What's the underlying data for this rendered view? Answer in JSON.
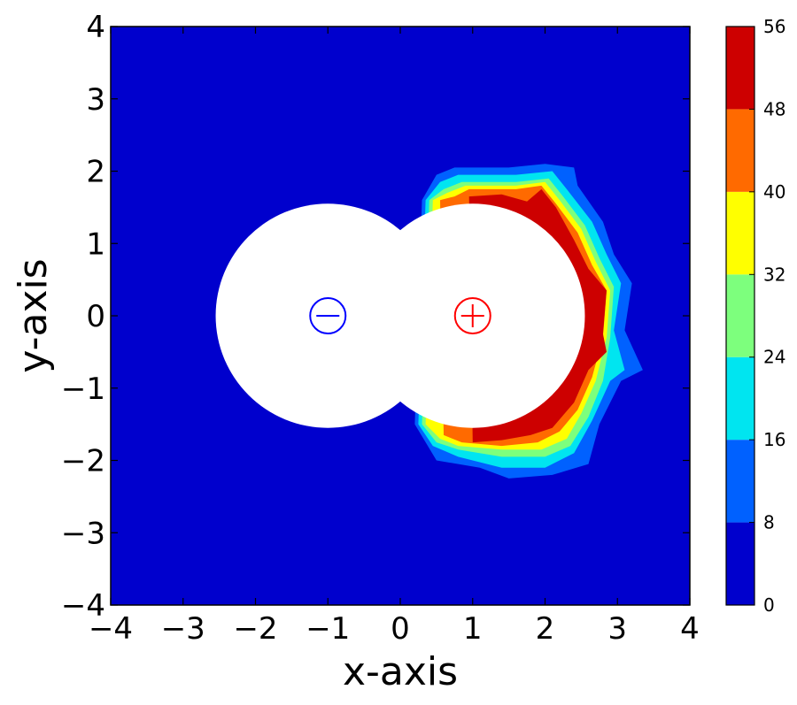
{
  "chart_data": {
    "type": "contour",
    "xlabel": "x-axis",
    "ylabel": "y-axis",
    "xlim": [
      -4,
      4
    ],
    "ylim": [
      -4,
      4
    ],
    "xticks": [
      "−4",
      "−3",
      "−2",
      "−1",
      "0",
      "1",
      "2",
      "3",
      "4"
    ],
    "yticks": [
      "−4",
      "−3",
      "−2",
      "−1",
      "0",
      "1",
      "2",
      "3",
      "4"
    ],
    "xtick_values": [
      -4,
      -3,
      -2,
      -1,
      0,
      1,
      2,
      3,
      4
    ],
    "ytick_values": [
      -4,
      -3,
      -2,
      -1,
      0,
      1,
      2,
      3,
      4
    ],
    "grid": false,
    "colorbar": {
      "levels": [
        0,
        8,
        16,
        24,
        32,
        40,
        48,
        56
      ],
      "labels": [
        "0",
        "8",
        "16",
        "24",
        "32",
        "40",
        "48",
        "56"
      ],
      "colors": [
        "#0000cd",
        "#0061ff",
        "#00e5f0",
        "#7dff7d",
        "#ffff00",
        "#ff6a00",
        "#cd0000"
      ]
    },
    "excluded_discs": [
      {
        "center": [
          -1,
          0
        ],
        "radius": 1.55
      },
      {
        "center": [
          1,
          0
        ],
        "radius": 1.55
      }
    ],
    "charges": [
      {
        "sign": "negative",
        "x": -1,
        "y": 0,
        "color": "#0000ff"
      },
      {
        "sign": "positive",
        "x": 1,
        "y": 0,
        "color": "#ff0000"
      }
    ],
    "contour_bands": [
      {
        "level_range": [
          8,
          16
        ],
        "color": "#0061ff",
        "points": [
          [
            0.3,
            1.6
          ],
          [
            0.5,
            1.95
          ],
          [
            0.75,
            2.05
          ],
          [
            1.5,
            2.05
          ],
          [
            2.0,
            2.1
          ],
          [
            2.4,
            2.05
          ],
          [
            2.45,
            1.8
          ],
          [
            2.8,
            1.3
          ],
          [
            2.95,
            0.85
          ],
          [
            3.2,
            0.45
          ],
          [
            3.1,
            -0.2
          ],
          [
            3.35,
            -0.75
          ],
          [
            3.05,
            -0.9
          ],
          [
            2.75,
            -1.5
          ],
          [
            2.6,
            -2.05
          ],
          [
            2.1,
            -2.2
          ],
          [
            1.5,
            -2.25
          ],
          [
            1.1,
            -2.1
          ],
          [
            0.5,
            -2.0
          ],
          [
            0.2,
            -1.5
          ]
        ]
      },
      {
        "level_range": [
          16,
          24
        ],
        "color": "#00e5f0",
        "points": [
          [
            0.35,
            1.6
          ],
          [
            0.55,
            1.85
          ],
          [
            0.8,
            1.95
          ],
          [
            1.6,
            1.95
          ],
          [
            2.1,
            2.0
          ],
          [
            2.3,
            1.75
          ],
          [
            2.65,
            1.3
          ],
          [
            2.85,
            0.85
          ],
          [
            3.05,
            0.45
          ],
          [
            2.95,
            -0.2
          ],
          [
            3.1,
            -0.75
          ],
          [
            2.9,
            -0.9
          ],
          [
            2.65,
            -1.45
          ],
          [
            2.4,
            -1.9
          ],
          [
            2.0,
            -2.1
          ],
          [
            1.4,
            -2.1
          ],
          [
            0.8,
            -1.95
          ],
          [
            0.45,
            -1.8
          ],
          [
            0.25,
            -1.5
          ]
        ]
      },
      {
        "level_range": [
          24,
          32
        ],
        "color": "#7dff7d",
        "points": [
          [
            0.4,
            1.6
          ],
          [
            0.6,
            1.75
          ],
          [
            0.85,
            1.85
          ],
          [
            1.6,
            1.85
          ],
          [
            2.05,
            1.9
          ],
          [
            2.25,
            1.65
          ],
          [
            2.55,
            1.25
          ],
          [
            2.75,
            0.8
          ],
          [
            2.95,
            0.4
          ],
          [
            2.9,
            -0.3
          ],
          [
            2.8,
            -0.9
          ],
          [
            2.6,
            -1.4
          ],
          [
            2.35,
            -1.8
          ],
          [
            2.0,
            -1.95
          ],
          [
            1.4,
            -1.95
          ],
          [
            0.8,
            -1.85
          ],
          [
            0.5,
            -1.75
          ],
          [
            0.3,
            -1.5
          ]
        ]
      },
      {
        "level_range": [
          32,
          40
        ],
        "color": "#ffff00",
        "points": [
          [
            0.45,
            1.6
          ],
          [
            0.65,
            1.7
          ],
          [
            0.9,
            1.8
          ],
          [
            1.6,
            1.8
          ],
          [
            2.0,
            1.85
          ],
          [
            2.2,
            1.6
          ],
          [
            2.5,
            1.2
          ],
          [
            2.7,
            0.75
          ],
          [
            2.9,
            0.35
          ],
          [
            2.85,
            -0.3
          ],
          [
            2.7,
            -0.9
          ],
          [
            2.5,
            -1.35
          ],
          [
            2.3,
            -1.7
          ],
          [
            1.95,
            -1.85
          ],
          [
            1.4,
            -1.85
          ],
          [
            0.8,
            -1.8
          ],
          [
            0.55,
            -1.7
          ],
          [
            0.35,
            -1.5
          ]
        ]
      },
      {
        "level_range": [
          40,
          48
        ],
        "color": "#ff6a00",
        "points": [
          [
            0.55,
            1.6
          ],
          [
            0.75,
            1.65
          ],
          [
            0.95,
            1.75
          ],
          [
            1.6,
            1.75
          ],
          [
            1.95,
            1.8
          ],
          [
            2.15,
            1.55
          ],
          [
            2.45,
            1.15
          ],
          [
            2.65,
            0.7
          ],
          [
            2.85,
            0.35
          ],
          [
            2.8,
            -0.3
          ],
          [
            2.65,
            -0.85
          ],
          [
            2.45,
            -1.3
          ],
          [
            2.2,
            -1.6
          ],
          [
            1.9,
            -1.75
          ],
          [
            1.4,
            -1.8
          ],
          [
            0.85,
            -1.75
          ],
          [
            0.6,
            -1.65
          ]
        ]
      },
      {
        "level_range": [
          48,
          56
        ],
        "color": "#cd0000",
        "points": [
          [
            0.95,
            1.65
          ],
          [
            1.4,
            1.68
          ],
          [
            1.75,
            1.58
          ],
          [
            1.95,
            1.75
          ],
          [
            2.15,
            1.5
          ],
          [
            2.4,
            1.05
          ],
          [
            2.6,
            0.65
          ],
          [
            2.85,
            0.35
          ],
          [
            2.8,
            -0.25
          ],
          [
            2.85,
            -0.5
          ],
          [
            2.6,
            -0.75
          ],
          [
            2.4,
            -1.2
          ],
          [
            2.1,
            -1.55
          ],
          [
            1.8,
            -1.65
          ],
          [
            1.4,
            -1.72
          ],
          [
            1.0,
            -1.75
          ]
        ]
      }
    ]
  }
}
